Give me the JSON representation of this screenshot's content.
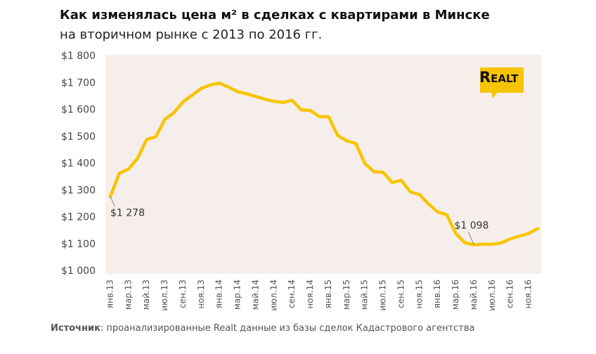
{
  "title": "Как изменялась цена м² в сделках с квартирами в Минске",
  "subtitle": "на вторичном рынке с 2013 по 2016 гг.",
  "logo": "Realt",
  "source_label": "Источник",
  "source_text": ": проанализированные Realt данные из базы сделок Кадастрового агентства",
  "chart_data": {
    "type": "line",
    "categories": [
      "янв.13",
      null,
      "мар.13",
      null,
      "май.13",
      null,
      "июл.13",
      null,
      "сен.13",
      null,
      "ноя.13",
      null,
      "янв.14",
      null,
      "мар.14",
      null,
      "май.14",
      null,
      "июл.14",
      null,
      "сен.14",
      null,
      "ноя.14",
      null,
      "янв.15",
      null,
      "мар.15",
      null,
      "май.15",
      null,
      "июл.15",
      null,
      "сен.15",
      null,
      "ноя.15",
      null,
      "янв.16",
      null,
      "мар.16",
      null,
      "май.16",
      null,
      "июл.16",
      null,
      "сен.16",
      null,
      "ноя.16",
      null
    ],
    "series": [
      {
        "color": "#f7c500",
        "values": [
          1278,
          1365,
          1380,
          1420,
          1490,
          1500,
          1565,
          1590,
          1630,
          1655,
          1680,
          1693,
          1700,
          1685,
          1668,
          1660,
          1650,
          1640,
          1632,
          1628,
          1636,
          1600,
          1598,
          1575,
          1575,
          1505,
          1485,
          1475,
          1400,
          1370,
          1368,
          1330,
          1338,
          1295,
          1285,
          1250,
          1220,
          1210,
          1140,
          1105,
          1098,
          1100,
          1100,
          1105,
          1120,
          1130,
          1140,
          1158
        ],
        "value_labels": [
          "$1 278",
          null,
          null,
          null,
          null,
          null,
          null,
          null,
          null,
          null,
          null,
          null,
          null,
          null,
          null,
          null,
          null,
          null,
          null,
          null,
          null,
          null,
          null,
          null,
          null,
          null,
          null,
          null,
          null,
          null,
          null,
          null,
          null,
          null,
          null,
          null,
          null,
          null,
          null,
          null,
          "$1 098",
          null,
          null,
          null,
          null,
          null,
          null,
          null
        ]
      }
    ],
    "ylim": [
      1000,
      1800
    ],
    "yticks": [
      {
        "value": 1000,
        "label": "$1 000"
      },
      {
        "value": 1100,
        "label": "$1 100"
      },
      {
        "value": 1200,
        "label": "$1 200"
      },
      {
        "value": 1300,
        "label": "$1 300"
      },
      {
        "value": 1400,
        "label": "$1 400"
      },
      {
        "value": 1500,
        "label": "$1 500"
      },
      {
        "value": 1600,
        "label": "$1 600"
      },
      {
        "value": 1700,
        "label": "$1 700"
      },
      {
        "value": 1800,
        "label": "$1 800"
      }
    ]
  }
}
